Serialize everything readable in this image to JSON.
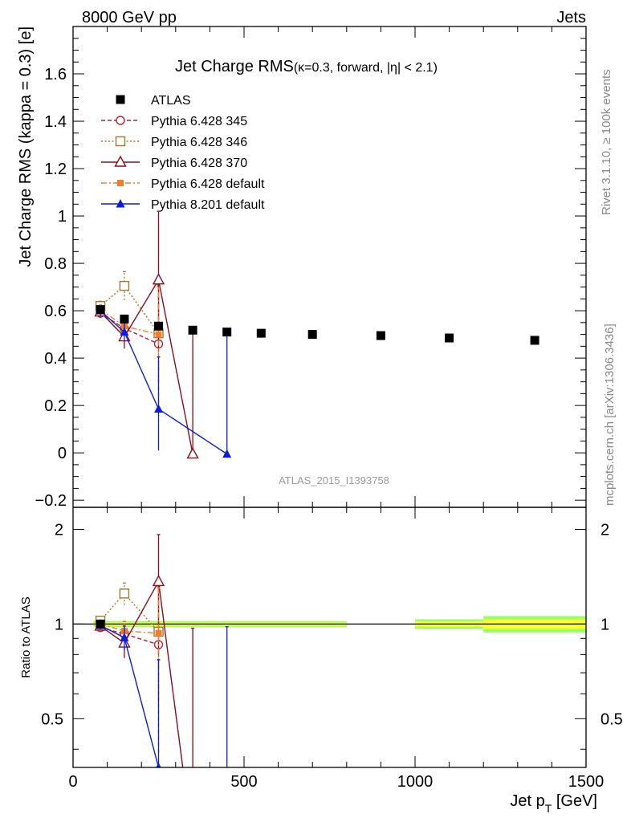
{
  "header": {
    "left": "8000 GeV pp",
    "right": "Jets",
    "side_top": "Rivet 3.1.10, ≥ 100k events",
    "side_bottom": "mcplots.cern.ch [arXiv:1306.3436]",
    "analysis_id": "ATLAS_2015_I1393758"
  },
  "chart_data": {
    "type": "scatter",
    "title": "Jet Charge RMS",
    "title_sub": "(κ=0.3, forward, |η| < 2.1)",
    "xlabel": "Jet p",
    "xlabel_sub": "T",
    "xlabel_unit": " [GeV]",
    "ylabel": "Jet Charge RMS (kappa = 0.3) [e]",
    "xlim": [
      0,
      1500
    ],
    "ylim": [
      -0.23,
      1.8
    ],
    "x_ticks": [
      0,
      500,
      1000,
      1500
    ],
    "x_tick_labels": [
      "0",
      "500",
      "1000",
      "1500"
    ],
    "y_ticks": [
      -0.2,
      0,
      0.2,
      0.4,
      0.6,
      0.8,
      1,
      1.2,
      1.4,
      1.6
    ],
    "y_tick_labels": [
      "−0.2",
      "0",
      "0.2",
      "0.4",
      "0.6",
      "0.8",
      "1",
      "1.2",
      "1.4",
      "1.6"
    ],
    "series": [
      {
        "name": "ATLAS",
        "color": "#000000",
        "marker": "square-filled",
        "line": "none",
        "x": [
          80,
          150,
          250,
          350,
          450,
          550,
          700,
          900,
          1100,
          1350
        ],
        "y": [
          0.605,
          0.565,
          0.535,
          0.518,
          0.51,
          0.505,
          0.5,
          0.495,
          0.485,
          0.475
        ],
        "err": [
          0.01,
          0.01,
          0.01,
          0.008,
          0.008,
          0.008,
          0.008,
          0.008,
          0.01,
          0.01
        ]
      },
      {
        "name": "Pythia 6.428 345",
        "color": "#b22234",
        "marker": "circle-open",
        "line": "dashed",
        "x": [
          80,
          150,
          250
        ],
        "y": [
          0.59,
          0.525,
          0.46
        ],
        "err": [
          0.02,
          0.05,
          0.25
        ]
      },
      {
        "name": "Pythia 6.428 346",
        "color": "#9c7a30",
        "marker": "square-open",
        "line": "dotted",
        "x": [
          80,
          150,
          250
        ],
        "y": [
          0.62,
          0.705,
          0.505
        ],
        "err": [
          0.02,
          0.06,
          0.2
        ]
      },
      {
        "name": "Pythia 6.428 370",
        "color": "#8b0d1e",
        "marker": "triangle-open",
        "line": "solid",
        "x": [
          80,
          150,
          250,
          350
        ],
        "y": [
          0.595,
          0.49,
          0.73,
          -0.005
        ],
        "err": [
          0.02,
          0.05,
          0.29,
          0.51
        ]
      },
      {
        "name": "Pythia 6.428 default",
        "color": "#f47d28",
        "marker": "square-filled-small",
        "line": "dashdot",
        "x": [
          80,
          150,
          250
        ],
        "y": [
          0.605,
          0.535,
          0.5
        ],
        "err": [
          0.02,
          0.04,
          0.2
        ]
      },
      {
        "name": "Pythia 8.201 default",
        "color": "#0a1ed8",
        "marker": "triangle-filled",
        "line": "solid",
        "x": [
          80,
          150,
          250,
          450
        ],
        "y": [
          0.6,
          0.51,
          0.185,
          -0.005
        ],
        "err": [
          0.02,
          0.04,
          0.22,
          0.51
        ]
      }
    ],
    "ratio": {
      "ylabel": "Ratio to ATLAS",
      "ylim": [
        0.35,
        2.35
      ],
      "y_ticks": [
        0.5,
        1,
        2
      ],
      "y_tick_labels": [
        "0.5",
        "1",
        "2"
      ],
      "bands": [
        {
          "x0": 60,
          "x1": 800,
          "half_inner": 0.012,
          "half_outer": 0.022
        },
        {
          "x0": 1000,
          "x1": 1200,
          "half_inner": 0.02,
          "half_outer": 0.035
        },
        {
          "x0": 1200,
          "x1": 1500,
          "half_inner": 0.035,
          "half_outer": 0.06
        }
      ],
      "band_colors": {
        "inner": "#ffff33",
        "outer": "#99ff66"
      },
      "series": [
        {
          "ref": 1,
          "x": [
            80,
            150,
            250
          ],
          "y": [
            0.975,
            0.93,
            0.86
          ],
          "err": [
            0.03,
            0.09,
            0.47
          ]
        },
        {
          "ref": 2,
          "x": [
            80,
            150,
            250
          ],
          "y": [
            1.025,
            1.25,
            0.945
          ],
          "err": [
            0.03,
            0.1,
            0.37
          ]
        },
        {
          "ref": 3,
          "x": [
            80,
            150,
            250,
            350
          ],
          "y": [
            0.985,
            0.87,
            1.365,
            0.2
          ],
          "err": [
            0.03,
            0.09,
            0.56,
            0.77
          ]
        },
        {
          "ref": 4,
          "x": [
            80,
            150,
            250
          ],
          "y": [
            1.0,
            0.95,
            0.935
          ],
          "err": [
            0.03,
            0.07,
            0.37
          ]
        },
        {
          "ref": 5,
          "x": [
            80,
            150,
            250,
            450
          ],
          "y": [
            0.99,
            0.905,
            0.35,
            0.2
          ],
          "err": [
            0.03,
            0.08,
            0.42,
            0.78
          ]
        }
      ]
    }
  }
}
